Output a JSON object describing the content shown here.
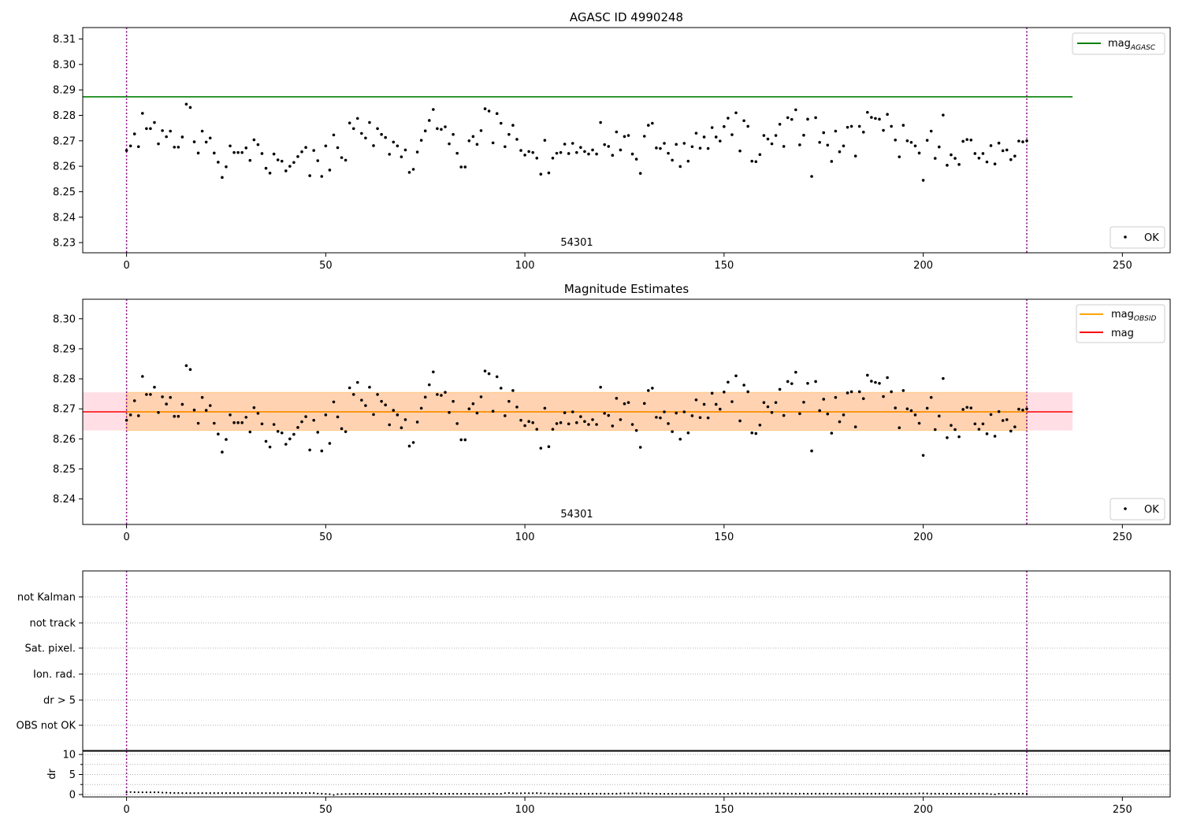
{
  "chart_data": [
    {
      "type": "scatter",
      "title": "AGASC ID 4990248",
      "xlim": [
        -11,
        262
      ],
      "ylim": [
        8.226,
        8.3145
      ],
      "xticks": [
        0,
        50,
        100,
        150,
        200,
        250
      ],
      "yticks": [
        8.23,
        8.24,
        8.25,
        8.26,
        8.27,
        8.28,
        8.29,
        8.3,
        8.31
      ],
      "ytick_labels": [
        "8.23",
        "8.24",
        "8.25",
        "8.26",
        "8.27",
        "8.28",
        "8.29",
        "8.30",
        "8.31"
      ],
      "hlines": [
        {
          "name": "mag",
          "sub": "AGASC",
          "y": 8.2873,
          "x_end": 237.5,
          "color": "#008000"
        }
      ],
      "vlines": [
        0,
        226
      ],
      "vline_color": "#800080",
      "annotation": "54301",
      "legend_top": [
        {
          "label": "mag",
          "sub": "AGASC",
          "color": "#008000"
        }
      ],
      "legend_bottom": {
        "label": "OK"
      },
      "series": [
        {
          "name": "OK",
          "ref": "points"
        }
      ]
    },
    {
      "type": "scatter",
      "title": "Magnitude Estimates",
      "xlim": [
        -11,
        262
      ],
      "ylim": [
        8.2315,
        8.3065
      ],
      "xticks": [
        0,
        50,
        100,
        150,
        200,
        250
      ],
      "yticks": [
        8.24,
        8.25,
        8.26,
        8.27,
        8.28,
        8.29,
        8.3
      ],
      "ytick_labels": [
        "8.24",
        "8.25",
        "8.26",
        "8.27",
        "8.28",
        "8.29",
        "8.30"
      ],
      "band_red": {
        "y1": 8.2628,
        "y2": 8.2755,
        "x_end": 237.5,
        "color": "#ffc0cb"
      },
      "band_orange": {
        "y1": 8.2628,
        "y2": 8.2755,
        "x_start": 0,
        "x_end": 226,
        "color": "#ffa500"
      },
      "hlines": [
        {
          "name": "mag",
          "sub": "",
          "y": 8.269,
          "x_end": 237.5,
          "color": "#ff0000"
        },
        {
          "name": "mag",
          "sub": "OBSID",
          "y": 8.269,
          "x_start": 0,
          "x_end": 226,
          "color": "#ffa500"
        }
      ],
      "vlines": [
        0,
        226
      ],
      "vline_color": "#800080",
      "annotation": "54301",
      "legend_top": [
        {
          "label": "mag",
          "sub": "OBSID",
          "color": "#ffa500"
        },
        {
          "label": "mag",
          "sub": "",
          "color": "#ff0000"
        }
      ],
      "legend_bottom": {
        "label": "OK"
      },
      "series": [
        {
          "name": "OK",
          "ref": "points"
        }
      ]
    },
    {
      "type": "scatter",
      "categories": [
        "not Kalman",
        "not track",
        "Sat. pixel.",
        "Ion. rad.",
        "dr > 5",
        "OBS not OK"
      ],
      "xlim": [
        -11,
        262
      ],
      "xticks": [
        0,
        50,
        100,
        150,
        200,
        250
      ],
      "vlines": [
        0,
        226
      ],
      "vline_color": "#800080",
      "flag_points": []
    },
    {
      "type": "scatter",
      "ylabel": "dr",
      "xlim": [
        -11,
        262
      ],
      "ylim": [
        -0.6,
        10.8
      ],
      "xticks": [
        0,
        50,
        100,
        150,
        200,
        250
      ],
      "yticks": [
        0,
        5,
        10
      ],
      "ytick_labels": [
        "0",
        "5",
        "10"
      ],
      "vlines": [
        0,
        226
      ],
      "vline_color": "#800080",
      "series": [
        {
          "name": "dr",
          "ref": "dr_values"
        }
      ]
    }
  ],
  "points": [
    [
      0,
      8.2662
    ],
    [
      1,
      8.268
    ],
    [
      2,
      8.2727
    ],
    [
      3,
      8.2677
    ],
    [
      4,
      8.2808
    ],
    [
      5,
      8.2748
    ],
    [
      6,
      8.2748
    ],
    [
      7,
      8.2772
    ],
    [
      8,
      8.2688
    ],
    [
      9,
      8.274
    ],
    [
      10,
      8.2716
    ],
    [
      11,
      8.2738
    ],
    [
      12,
      8.2675
    ],
    [
      13,
      8.2675
    ],
    [
      14,
      8.2715
    ],
    [
      15,
      8.2844
    ],
    [
      16,
      8.2831
    ],
    [
      17,
      8.2696
    ],
    [
      18,
      8.2652
    ],
    [
      19,
      8.2738
    ],
    [
      20,
      8.2695
    ],
    [
      21,
      8.2711
    ],
    [
      22,
      8.2652
    ],
    [
      23,
      8.2616
    ],
    [
      24,
      8.2556
    ],
    [
      25,
      8.2598
    ],
    [
      26,
      8.268
    ],
    [
      27,
      8.2654
    ],
    [
      28,
      8.2654
    ],
    [
      29,
      8.2654
    ],
    [
      30,
      8.2672
    ],
    [
      31,
      8.2623
    ],
    [
      32,
      8.2704
    ],
    [
      33,
      8.2685
    ],
    [
      34,
      8.265
    ],
    [
      35,
      8.2592
    ],
    [
      36,
      8.2573
    ],
    [
      37,
      8.2648
    ],
    [
      38,
      8.2625
    ],
    [
      39,
      8.262
    ],
    [
      40,
      8.2582
    ],
    [
      41,
      8.26
    ],
    [
      42,
      8.2615
    ],
    [
      43,
      8.2638
    ],
    [
      44,
      8.2657
    ],
    [
      45,
      8.2674
    ],
    [
      46,
      8.2563
    ],
    [
      47,
      8.2662
    ],
    [
      48,
      8.2622
    ],
    [
      49,
      8.256
    ],
    [
      50,
      8.268
    ],
    [
      51,
      8.2585
    ],
    [
      52,
      8.2723
    ],
    [
      53,
      8.2673
    ],
    [
      54,
      8.2634
    ],
    [
      55,
      8.2624
    ],
    [
      56,
      8.277
    ],
    [
      57,
      8.2748
    ],
    [
      58,
      8.2788
    ],
    [
      59,
      8.2729
    ],
    [
      60,
      8.2711
    ],
    [
      61,
      8.2772
    ],
    [
      62,
      8.2681
    ],
    [
      63,
      8.2748
    ],
    [
      64,
      8.2725
    ],
    [
      65,
      8.2713
    ],
    [
      66,
      8.2647
    ],
    [
      67,
      8.2695
    ],
    [
      68,
      8.268
    ],
    [
      69,
      8.2637
    ],
    [
      70,
      8.2664
    ],
    [
      71,
      8.2576
    ],
    [
      72,
      8.2588
    ],
    [
      73,
      8.2656
    ],
    [
      74,
      8.2702
    ],
    [
      75,
      8.2739
    ],
    [
      76,
      8.278
    ],
    [
      77,
      8.2823
    ],
    [
      78,
      8.2748
    ],
    [
      79,
      8.2745
    ],
    [
      80,
      8.2755
    ],
    [
      81,
      8.2688
    ],
    [
      82,
      8.2725
    ],
    [
      83,
      8.2651
    ],
    [
      84,
      8.2597
    ],
    [
      85,
      8.2597
    ],
    [
      86,
      8.27
    ],
    [
      87,
      8.2717
    ],
    [
      88,
      8.2686
    ],
    [
      89,
      8.274
    ],
    [
      90,
      8.2826
    ],
    [
      91,
      8.2817
    ],
    [
      92,
      8.2692
    ],
    [
      93,
      8.2807
    ],
    [
      94,
      8.2769
    ],
    [
      95,
      8.2677
    ],
    [
      96,
      8.2725
    ],
    [
      97,
      8.2761
    ],
    [
      98,
      8.2706
    ],
    [
      99,
      8.2662
    ],
    [
      100,
      8.2644
    ],
    [
      101,
      8.2658
    ],
    [
      102,
      8.2654
    ],
    [
      103,
      8.2632
    ],
    [
      104,
      8.2569
    ],
    [
      105,
      8.2702
    ],
    [
      106,
      8.2574
    ],
    [
      107,
      8.2632
    ],
    [
      108,
      8.2651
    ],
    [
      109,
      8.2654
    ],
    [
      110,
      8.2687
    ],
    [
      111,
      8.265
    ],
    [
      112,
      8.269
    ],
    [
      113,
      8.2654
    ],
    [
      114,
      8.2674
    ],
    [
      115,
      8.2658
    ],
    [
      116,
      8.2648
    ],
    [
      117,
      8.2664
    ],
    [
      118,
      8.2648
    ],
    [
      119,
      8.2772
    ],
    [
      120,
      8.2685
    ],
    [
      121,
      8.2678
    ],
    [
      122,
      8.2643
    ],
    [
      123,
      8.2735
    ],
    [
      124,
      8.2664
    ],
    [
      125,
      8.2717
    ],
    [
      126,
      8.2721
    ],
    [
      127,
      8.2648
    ],
    [
      128,
      8.2628
    ],
    [
      129,
      8.2572
    ],
    [
      130,
      8.2718
    ],
    [
      131,
      8.2761
    ],
    [
      132,
      8.2769
    ],
    [
      133,
      8.2672
    ],
    [
      134,
      8.267
    ],
    [
      135,
      8.269
    ],
    [
      136,
      8.2651
    ],
    [
      137,
      8.2624
    ],
    [
      138,
      8.2686
    ],
    [
      139,
      8.2599
    ],
    [
      140,
      8.269
    ],
    [
      141,
      8.262
    ],
    [
      142,
      8.2677
    ],
    [
      143,
      8.273
    ],
    [
      144,
      8.2671
    ],
    [
      145,
      8.2715
    ],
    [
      146,
      8.267
    ],
    [
      147,
      8.2752
    ],
    [
      148,
      8.2715
    ],
    [
      149,
      8.2699
    ],
    [
      150,
      8.2756
    ],
    [
      151,
      8.2789
    ],
    [
      152,
      8.2724
    ],
    [
      153,
      8.281
    ],
    [
      154,
      8.266
    ],
    [
      155,
      8.2779
    ],
    [
      156,
      8.2757
    ],
    [
      157,
      8.262
    ],
    [
      158,
      8.2618
    ],
    [
      159,
      8.2646
    ],
    [
      160,
      8.2721
    ],
    [
      161,
      8.2707
    ],
    [
      162,
      8.2688
    ],
    [
      163,
      8.2721
    ],
    [
      164,
      8.2765
    ],
    [
      165,
      8.2678
    ],
    [
      166,
      8.2791
    ],
    [
      167,
      8.2784
    ],
    [
      168,
      8.2822
    ],
    [
      169,
      8.2684
    ],
    [
      170,
      8.2722
    ],
    [
      171,
      8.2785
    ],
    [
      172,
      8.256
    ],
    [
      173,
      8.2791
    ],
    [
      174,
      8.2694
    ],
    [
      175,
      8.2732
    ],
    [
      176,
      8.2683
    ],
    [
      177,
      8.2619
    ],
    [
      178,
      8.2738
    ],
    [
      179,
      8.2657
    ],
    [
      180,
      8.268
    ],
    [
      181,
      8.2753
    ],
    [
      182,
      8.2757
    ],
    [
      183,
      8.264
    ],
    [
      184,
      8.2757
    ],
    [
      185,
      8.2734
    ],
    [
      186,
      8.2812
    ],
    [
      187,
      8.2792
    ],
    [
      188,
      8.2788
    ],
    [
      189,
      8.2785
    ],
    [
      190,
      8.2741
    ],
    [
      191,
      8.2804
    ],
    [
      192,
      8.2757
    ],
    [
      193,
      8.2703
    ],
    [
      194,
      8.2637
    ],
    [
      195,
      8.2761
    ],
    [
      196,
      8.27
    ],
    [
      197,
      8.2694
    ],
    [
      198,
      8.268
    ],
    [
      199,
      8.2652
    ],
    [
      200,
      8.2545
    ],
    [
      201,
      8.2702
    ],
    [
      202,
      8.2738
    ],
    [
      203,
      8.2631
    ],
    [
      204,
      8.2676
    ],
    [
      205,
      8.2801
    ],
    [
      206,
      8.2604
    ],
    [
      207,
      8.2645
    ],
    [
      208,
      8.2631
    ],
    [
      209,
      8.2607
    ],
    [
      210,
      8.2698
    ],
    [
      211,
      8.2705
    ],
    [
      212,
      8.2703
    ],
    [
      213,
      8.265
    ],
    [
      214,
      8.2632
    ],
    [
      215,
      8.265
    ],
    [
      216,
      8.2617
    ],
    [
      217,
      8.2681
    ],
    [
      218,
      8.2609
    ],
    [
      219,
      8.2691
    ],
    [
      220,
      8.2661
    ],
    [
      221,
      8.2664
    ],
    [
      222,
      8.2626
    ],
    [
      223,
      8.264
    ],
    [
      224,
      8.2699
    ],
    [
      225,
      8.2696
    ],
    [
      226,
      8.27
    ]
  ],
  "dr_values": [
    0.55,
    0.62,
    0.58,
    0.57,
    0.55,
    0.56,
    0.55,
    0.55,
    0.55,
    0.48,
    0.45,
    0.41,
    0.39,
    0.38,
    0.36,
    0.36,
    0.36,
    0.36,
    0.36,
    0.36,
    0.36,
    0.36,
    0.36,
    0.36,
    0.36,
    0.36,
    0.36,
    0.36,
    0.36,
    0.36,
    0.36,
    0.36,
    0.36,
    0.36,
    0.36,
    0.36,
    0.36,
    0.36,
    0.36,
    0.36,
    0.36,
    0.36,
    0.36,
    0.36,
    0.36,
    0.36,
    0.36,
    0.36,
    0.25,
    0.21,
    0.15,
    0.1,
    -0.1,
    0.1,
    0.12,
    0.14,
    0.15,
    0.16,
    0.16,
    0.16,
    0.16,
    0.16,
    0.16,
    0.16,
    0.16,
    0.16,
    0.16,
    0.16,
    0.16,
    0.16,
    0.16,
    0.16,
    0.16,
    0.16,
    0.16,
    0.18,
    0.2,
    0.28,
    0.16,
    0.16,
    0.18,
    0.18,
    0.2,
    0.2,
    0.18,
    0.18,
    0.18,
    0.18,
    0.18,
    0.18,
    0.18,
    0.18,
    0.18,
    0.18,
    0.2,
    0.35,
    0.38,
    0.32,
    0.3,
    0.32,
    0.35,
    0.34,
    0.34,
    0.36,
    0.32,
    0.3,
    0.24,
    0.24,
    0.24,
    0.22,
    0.22,
    0.22,
    0.22,
    0.22,
    0.22,
    0.22,
    0.22,
    0.22,
    0.22,
    0.22,
    0.22,
    0.22,
    0.22,
    0.22,
    0.26,
    0.28,
    0.28,
    0.28,
    0.28,
    0.28,
    0.28,
    0.26,
    0.22,
    0.2,
    0.2,
    0.2,
    0.2,
    0.2,
    0.2,
    0.2,
    0.2,
    0.2,
    0.2,
    0.2,
    0.2,
    0.2,
    0.2,
    0.2,
    0.2,
    0.2,
    0.2,
    0.2,
    0.24,
    0.26,
    0.26,
    0.26,
    0.26,
    0.26,
    0.24,
    0.22,
    0.24,
    0.26,
    0.26,
    0.26,
    0.26,
    0.26,
    0.24,
    0.22,
    0.22,
    0.22,
    0.22,
    0.22,
    0.22,
    0.22,
    0.22,
    0.22,
    0.22,
    0.22,
    0.22,
    0.22,
    0.22,
    0.22,
    0.22,
    0.22,
    0.22,
    0.22,
    0.22,
    0.22,
    0.22,
    0.22,
    0.22,
    0.22,
    0.22,
    0.22,
    0.22,
    0.22,
    0.22,
    0.22,
    0.25,
    0.28,
    0.28,
    0.26,
    0.22,
    0.22,
    0.22,
    0.22,
    0.22,
    0.22,
    0.22,
    0.22,
    0.22,
    0.22,
    0.22,
    0.22,
    0.22,
    0.22,
    0.22,
    0.1,
    0.05,
    0.2,
    0.22,
    0.22,
    0.22,
    0.22,
    0.22,
    0.22,
    0.22
  ]
}
